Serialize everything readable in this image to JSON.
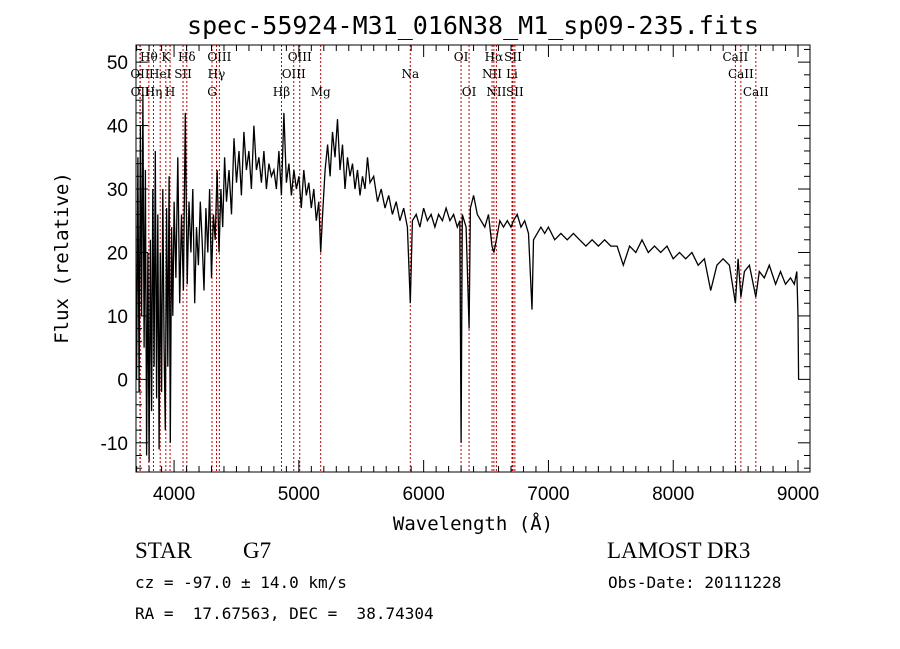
{
  "chart_data": {
    "type": "line",
    "title": "spec-55924-M31_016N38_M1_sp09-235.fits",
    "xlabel": "Wavelength (Å)",
    "ylabel": "Flux (relative)",
    "xlim": [
      3695,
      9096
    ],
    "ylim": [
      -14.6,
      52.7
    ],
    "xticks": [
      4000,
      5000,
      6000,
      7000,
      8000,
      9000
    ],
    "yticks": [
      -10,
      0,
      10,
      20,
      30,
      40,
      50
    ],
    "grid": false,
    "line_color": "#000000",
    "marker_color": "#c00000",
    "series": [
      {
        "name": "spectrum",
        "x": [
          3700,
          3710,
          3720,
          3730,
          3740,
          3750,
          3760,
          3770,
          3780,
          3790,
          3800,
          3810,
          3820,
          3830,
          3840,
          3850,
          3860,
          3870,
          3880,
          3890,
          3900,
          3910,
          3920,
          3930,
          3940,
          3950,
          3960,
          3970,
          3980,
          3990,
          4000,
          4015,
          4030,
          4045,
          4060,
          4075,
          4090,
          4105,
          4120,
          4135,
          4150,
          4165,
          4180,
          4195,
          4210,
          4225,
          4240,
          4255,
          4270,
          4285,
          4300,
          4315,
          4330,
          4345,
          4360,
          4375,
          4390,
          4405,
          4420,
          4440,
          4460,
          4480,
          4500,
          4520,
          4540,
          4560,
          4580,
          4600,
          4620,
          4640,
          4660,
          4680,
          4700,
          4720,
          4740,
          4760,
          4780,
          4800,
          4820,
          4840,
          4860,
          4880,
          4900,
          4920,
          4940,
          4960,
          4980,
          5000,
          5020,
          5040,
          5060,
          5080,
          5100,
          5120,
          5140,
          5160,
          5175,
          5190,
          5210,
          5230,
          5250,
          5270,
          5290,
          5310,
          5330,
          5350,
          5370,
          5390,
          5410,
          5430,
          5450,
          5470,
          5490,
          5510,
          5530,
          5550,
          5570,
          5600,
          5630,
          5660,
          5690,
          5720,
          5750,
          5780,
          5810,
          5840,
          5870,
          5893,
          5910,
          5940,
          5970,
          6000,
          6030,
          6060,
          6090,
          6120,
          6150,
          6180,
          6210,
          6240,
          6270,
          6290,
          6300,
          6310,
          6340,
          6364,
          6375,
          6400,
          6430,
          6460,
          6490,
          6520,
          6548,
          6563,
          6583,
          6610,
          6640,
          6670,
          6700,
          6720,
          6750,
          6780,
          6810,
          6840,
          6868,
          6880,
          6910,
          6940,
          6970,
          7000,
          7050,
          7100,
          7150,
          7200,
          7250,
          7300,
          7350,
          7400,
          7450,
          7500,
          7550,
          7600,
          7650,
          7700,
          7750,
          7800,
          7850,
          7900,
          7950,
          8000,
          8050,
          8100,
          8150,
          8200,
          8250,
          8300,
          8350,
          8400,
          8450,
          8498,
          8520,
          8542,
          8570,
          8610,
          8662,
          8690,
          8730,
          8770,
          8820,
          8860,
          8900,
          8940,
          8970,
          8990,
          9000,
          9005
        ],
        "y": [
          0,
          35,
          -2,
          40,
          10,
          45,
          5,
          33,
          -12,
          20,
          -13,
          22,
          -5,
          30,
          2,
          36,
          -3,
          26,
          -11,
          20,
          -2,
          30,
          5,
          -8,
          27,
          2,
          32,
          -10,
          24,
          10,
          28,
          16,
          35,
          12,
          26,
          14,
          42,
          15,
          28,
          20,
          30,
          12,
          24,
          18,
          28,
          22,
          14,
          27,
          20,
          30,
          16,
          26,
          22,
          33,
          20,
          30,
          24,
          35,
          28,
          33,
          26,
          38,
          31,
          36,
          29,
          39,
          33,
          36,
          30,
          40,
          33,
          35,
          31,
          36,
          30,
          34,
          32,
          33,
          30,
          36,
          29,
          42,
          31,
          34,
          29,
          33,
          30,
          32,
          27,
          33,
          29,
          31,
          27,
          30,
          25,
          28,
          20,
          26,
          33,
          37,
          32,
          39,
          35,
          41,
          33,
          37,
          30,
          35,
          32,
          34,
          30,
          33,
          29,
          32,
          30,
          35,
          31,
          32,
          28,
          30,
          27,
          29,
          26,
          28,
          25,
          27,
          24,
          12,
          25,
          26,
          24,
          27,
          25,
          26,
          24,
          26,
          25,
          27,
          25,
          26,
          24,
          25,
          -10,
          26,
          24,
          8,
          27,
          29,
          26,
          25,
          24,
          26,
          21,
          20,
          22,
          25,
          24,
          25,
          24,
          25,
          26,
          24,
          25,
          23,
          11,
          22,
          23,
          24,
          23,
          24,
          22,
          23,
          22,
          23,
          22,
          21,
          22,
          21,
          22,
          21,
          21,
          18,
          21,
          20,
          22,
          20,
          21,
          20,
          21,
          19,
          20,
          19,
          20,
          18,
          19,
          14,
          18,
          19,
          18,
          12,
          19,
          13,
          17,
          18,
          13,
          17,
          16,
          18,
          15,
          17,
          15,
          16,
          15,
          17,
          10,
          0
        ]
      }
    ],
    "spectral_lines": [
      {
        "label": "Hθ",
        "wavelength": 3798,
        "row": 1
      },
      {
        "label": "K",
        "wavelength": 3934,
        "row": 1
      },
      {
        "label": "Hδ",
        "wavelength": 4102,
        "row": 1
      },
      {
        "label": "OIII",
        "wavelength": 4363,
        "row": 1
      },
      {
        "label": "OIII",
        "wavelength": 5007,
        "row": 1
      },
      {
        "label": "OI",
        "wavelength": 6300,
        "row": 1
      },
      {
        "label": "Hα",
        "wavelength": 6563,
        "row": 1
      },
      {
        "label": "SII",
        "wavelength": 6716,
        "row": 1
      },
      {
        "label": "CaII",
        "wavelength": 8498,
        "row": 1
      },
      {
        "label": "OII",
        "wavelength": 3727,
        "row": 2
      },
      {
        "label": "HeI",
        "wavelength": 3889,
        "row": 2
      },
      {
        "label": "SII",
        "wavelength": 4072,
        "row": 2
      },
      {
        "label": "Hγ",
        "wavelength": 4340,
        "row": 2
      },
      {
        "label": "OIII",
        "wavelength": 4959,
        "row": 2
      },
      {
        "label": "Na",
        "wavelength": 5893,
        "row": 2
      },
      {
        "label": "NII",
        "wavelength": 6548,
        "row": 2
      },
      {
        "label": "Li",
        "wavelength": 6708,
        "row": 2
      },
      {
        "label": "CaII",
        "wavelength": 8542,
        "row": 2
      },
      {
        "label": "OII",
        "wavelength": 3729,
        "row": 3
      },
      {
        "label": "Hη",
        "wavelength": 3835,
        "row": 3
      },
      {
        "label": "H",
        "wavelength": 3968,
        "row": 3
      },
      {
        "label": "G",
        "wavelength": 4304,
        "row": 3
      },
      {
        "label": "Hβ",
        "wavelength": 4861,
        "row": 3
      },
      {
        "label": "Mg",
        "wavelength": 5175,
        "row": 3
      },
      {
        "label": "OI",
        "wavelength": 6364,
        "row": 3
      },
      {
        "label": "NII",
        "wavelength": 6583,
        "row": 3
      },
      {
        "label": "SII",
        "wavelength": 6731,
        "row": 3
      },
      {
        "label": "CaII",
        "wavelength": 8662,
        "row": 3
      }
    ]
  },
  "info": {
    "object_class": "STAR",
    "subclass": "G7",
    "survey": "LAMOST DR3",
    "redshift": "cz = -97.0 ± 14.0 km/s",
    "obs_date": "Obs-Date: 20111228",
    "coords": "RA =  17.67563, DEC =  38.74304"
  }
}
